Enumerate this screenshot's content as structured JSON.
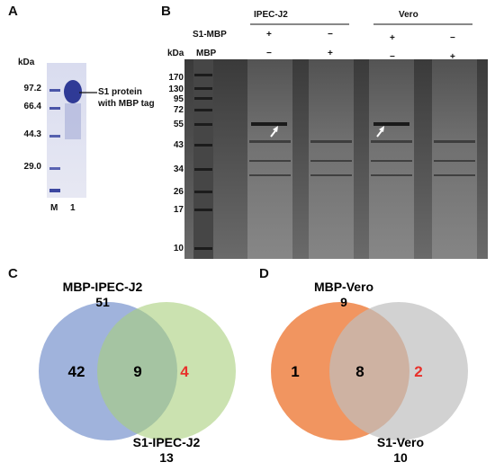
{
  "panelA": {
    "letter": "A",
    "unit": "kDa",
    "markers": [
      "97.2",
      "66.4",
      "44.3",
      "29.0"
    ],
    "lanes": [
      "M",
      "1"
    ],
    "annotation_line1": "S1 protein",
    "annotation_line2": "with MBP tag"
  },
  "panelB": {
    "letter": "B",
    "unit": "kDa",
    "group1": "IPEC-J2",
    "group2": "Vero",
    "row1_label": "S1-MBP",
    "row2_label": "MBP",
    "row1_signs": [
      "+",
      "−",
      "+",
      "−"
    ],
    "row2_signs": [
      "−",
      "+",
      "−",
      "+"
    ],
    "markers": [
      "170",
      "130",
      "95",
      "72",
      "55",
      "43",
      "34",
      "26",
      "17",
      "10"
    ]
  },
  "panelC": {
    "letter": "C",
    "left_set": "MBP-IPEC-J2",
    "left_total": "51",
    "right_set": "S1-IPEC-J2",
    "right_total": "13",
    "left_only": "42",
    "overlap": "9",
    "right_only": "4",
    "left_color": "#8fa6d6",
    "right_color": "#a9cf7c",
    "highlight_color": "#e8312b"
  },
  "panelD": {
    "letter": "D",
    "left_set": "MBP-Vero",
    "left_total": "9",
    "right_set": "S1-Vero",
    "right_total": "10",
    "left_only": "1",
    "overlap": "8",
    "right_only": "2",
    "left_color": "#f08a4f",
    "right_color": "#bfbfbf",
    "highlight_color": "#e8312b"
  }
}
